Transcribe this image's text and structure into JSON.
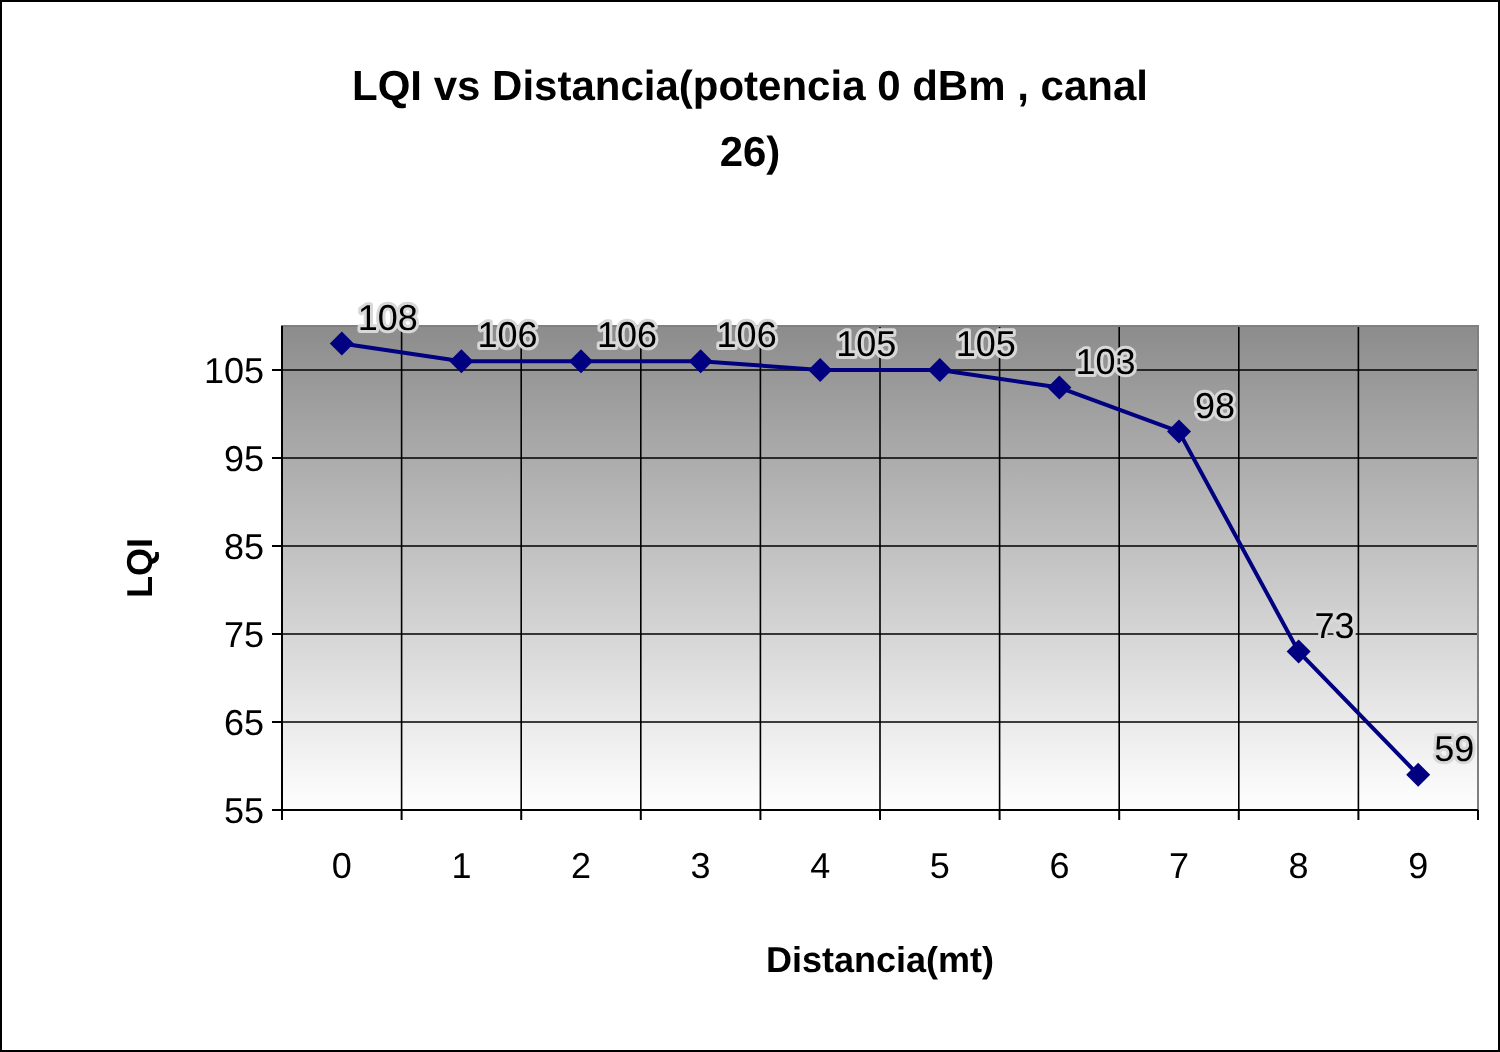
{
  "chart_data": {
    "type": "line",
    "title": "LQI vs Distancia(potencia 0 dBm , canal 26)",
    "xlabel": "Distancia(mt)",
    "ylabel": "LQI",
    "categories": [
      "0",
      "1",
      "2",
      "3",
      "4",
      "5",
      "6",
      "7",
      "8",
      "9"
    ],
    "series": [
      {
        "color": "#000080",
        "values": [
          108,
          106,
          106,
          106,
          105,
          105,
          103,
          98,
          73,
          59
        ]
      }
    ],
    "ylim": [
      55,
      110
    ],
    "yticks": [
      55,
      65,
      75,
      85,
      95,
      105
    ],
    "grid": true,
    "marker": "diamond",
    "data_labels": true
  }
}
